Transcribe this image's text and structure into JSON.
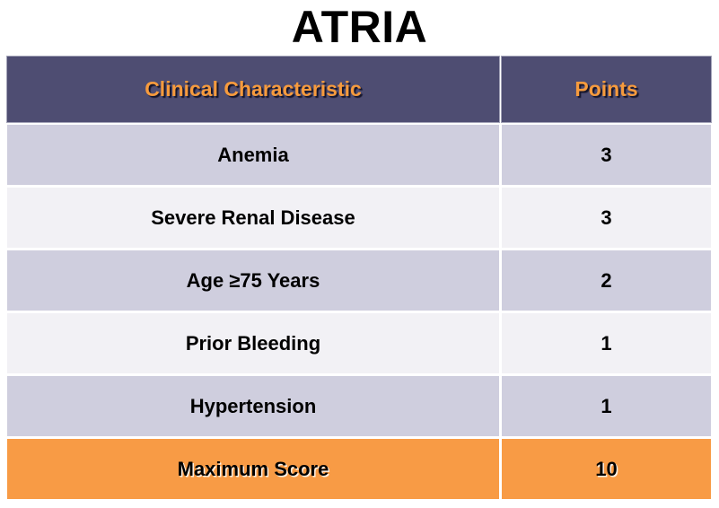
{
  "title": "ATRIA",
  "table": {
    "headers": {
      "characteristic": "Clinical Characteristic",
      "points": "Points"
    },
    "rows": [
      {
        "characteristic": "Anemia",
        "points": "3"
      },
      {
        "characteristic": "Severe Renal Disease",
        "points": "3"
      },
      {
        "characteristic": "Age ≥75 Years",
        "points": "2"
      },
      {
        "characteristic": "Prior Bleeding",
        "points": "1"
      },
      {
        "characteristic": "Hypertension",
        "points": "1"
      }
    ],
    "footer": {
      "characteristic": "Maximum Score",
      "points": "10"
    }
  },
  "colors": {
    "header_bg": "#4E4D72",
    "header_text": "#F79B3D",
    "row_alt_bg": "#CFCEDE",
    "row_plain_bg": "#F2F1F5",
    "total_bg": "#F89B45",
    "body_text": "#000000",
    "page_bg": "#FFFFFF"
  }
}
